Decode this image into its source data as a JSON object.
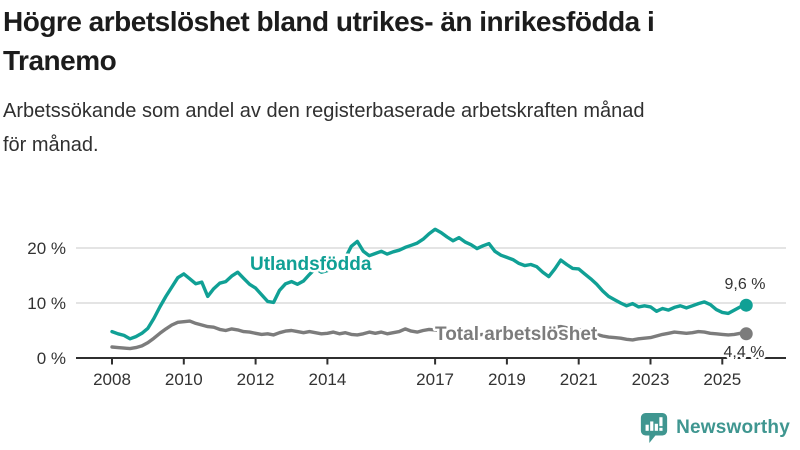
{
  "header": {
    "title": "Högre arbetslöshet bland utrikes- än inrikesfödda i\nTranemo",
    "subtitle": "Arbetssökande som andel av den registerbaserade arbetskraften månad\nför månad."
  },
  "footer": {
    "brand": "Newsworthy",
    "logo_icon": "bar-chart-speech-bubble-icon"
  },
  "colors": {
    "foreign_line": "#10a095",
    "total_line": "#7c7c7c",
    "axis": "#2f2f2f",
    "grid": "#d4d4d4",
    "axis_text": "#333333",
    "brand_teal": "#3f9690"
  },
  "chart_data": {
    "type": "line",
    "unit": "%",
    "x_start": 2008.0,
    "x_step_years": 0.166667,
    "x_tick_years": [
      2008,
      2010,
      2012,
      2014,
      2017,
      2019,
      2021,
      2023,
      2025
    ],
    "x_tick_labels": [
      "2008",
      "2010",
      "2012",
      "2014",
      "2017",
      "2019",
      "2021",
      "2023",
      "2025"
    ],
    "y_tick_values": [
      0,
      10,
      20
    ],
    "y_tick_labels": [
      "0 %",
      "10 %",
      "20 %"
    ],
    "ylim": [
      0,
      25
    ],
    "grid": "horizontal-only",
    "legend_position": "inline-labels",
    "series": [
      {
        "name": "Utlandsfödda",
        "color": "#10a095",
        "end_value": 9.6,
        "end_label": "9,6 %",
        "values": [
          4.8,
          4.4,
          4.1,
          3.5,
          3.9,
          4.5,
          5.4,
          7.2,
          9.3,
          11.2,
          12.9,
          14.6,
          15.3,
          14.4,
          13.5,
          13.8,
          11.2,
          12.6,
          13.6,
          13.9,
          14.9,
          15.6,
          14.5,
          13.4,
          12.7,
          11.5,
          10.3,
          10.1,
          12.3,
          13.5,
          13.9,
          13.4,
          14.0,
          15.2,
          16.3,
          15.6,
          15.9,
          16.4,
          17.1,
          18.2,
          20.3,
          21.2,
          19.4,
          18.6,
          19.0,
          19.4,
          18.9,
          19.3,
          19.6,
          20.1,
          20.5,
          20.9,
          21.6,
          22.6,
          23.4,
          22.8,
          22.0,
          21.3,
          21.9,
          21.1,
          20.6,
          19.9,
          20.4,
          20.8,
          19.4,
          18.7,
          18.3,
          17.9,
          17.2,
          16.8,
          17.0,
          16.6,
          15.6,
          14.8,
          16.2,
          17.8,
          17.0,
          16.3,
          16.2,
          15.3,
          14.4,
          13.4,
          12.2,
          11.2,
          10.6,
          10.0,
          9.5,
          9.9,
          9.3,
          9.5,
          9.3,
          8.5,
          9.0,
          8.7,
          9.2,
          9.5,
          9.1,
          9.5,
          9.9,
          10.2,
          9.7,
          8.8,
          8.3,
          8.1,
          8.7,
          9.3,
          9.6
        ]
      },
      {
        "name": "Total arbetslöshet",
        "color": "#7c7c7c",
        "end_value": 4.4,
        "end_label": "4,4 %",
        "values": [
          2.0,
          1.9,
          1.8,
          1.7,
          1.9,
          2.2,
          2.8,
          3.6,
          4.5,
          5.3,
          6.0,
          6.5,
          6.6,
          6.7,
          6.3,
          6.0,
          5.7,
          5.6,
          5.2,
          5.0,
          5.3,
          5.1,
          4.8,
          4.7,
          4.5,
          4.3,
          4.4,
          4.2,
          4.6,
          4.9,
          5.0,
          4.8,
          4.6,
          4.8,
          4.6,
          4.4,
          4.5,
          4.7,
          4.4,
          4.6,
          4.3,
          4.2,
          4.4,
          4.7,
          4.5,
          4.7,
          4.4,
          4.6,
          4.8,
          5.3,
          4.9,
          4.7,
          5.0,
          5.2,
          5.1,
          4.9,
          4.7,
          4.5,
          4.6,
          4.5,
          4.4,
          4.2,
          4.3,
          4.4,
          4.2,
          4.0,
          4.1,
          4.2,
          4.4,
          4.2,
          4.1,
          4.3,
          4.5,
          4.9,
          5.6,
          5.7,
          5.5,
          5.3,
          5.1,
          4.9,
          4.6,
          4.3,
          4.0,
          3.8,
          3.7,
          3.6,
          3.4,
          3.3,
          3.5,
          3.6,
          3.7,
          4.0,
          4.3,
          4.5,
          4.7,
          4.6,
          4.5,
          4.6,
          4.8,
          4.7,
          4.5,
          4.4,
          4.3,
          4.2,
          4.3,
          4.5,
          4.4
        ]
      }
    ]
  }
}
